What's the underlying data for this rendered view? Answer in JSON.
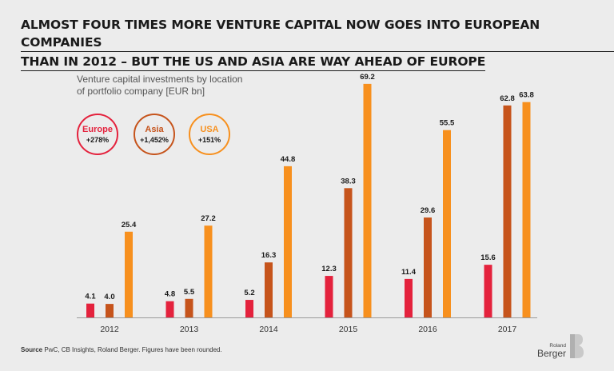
{
  "header": {
    "title_line1": "ALMOST FOUR TIMES MORE VENTURE CAPITAL NOW GOES INTO EUROPEAN COMPANIES",
    "title_line2": "THAN IN 2012 – BUT THE US AND ASIA ARE WAY AHEAD OF EUROPE"
  },
  "subtitle_line1": "Venture capital investments by location",
  "subtitle_line2": "of portfolio company [EUR bn]",
  "legend": [
    {
      "name": "Europe",
      "change": "+278%",
      "color": "#e4223d"
    },
    {
      "name": "Asia",
      "change": "+1,452%",
      "color": "#c6541c"
    },
    {
      "name": "USA",
      "change": "+151%",
      "color": "#f7901e"
    }
  ],
  "chart_data": {
    "type": "bar",
    "categories": [
      "2012",
      "2013",
      "2014",
      "2015",
      "2016",
      "2017"
    ],
    "series": [
      {
        "name": "Europe",
        "color": "#e4223d",
        "values": [
          4.1,
          4.8,
          5.2,
          12.3,
          11.4,
          15.6
        ]
      },
      {
        "name": "Asia",
        "color": "#c6541c",
        "values": [
          4.0,
          5.5,
          16.3,
          38.3,
          29.6,
          62.8
        ]
      },
      {
        "name": "USA",
        "color": "#f7901e",
        "values": [
          25.4,
          27.2,
          44.8,
          69.2,
          55.5,
          63.8
        ]
      }
    ],
    "ylim": [
      0,
      70
    ],
    "grid": false,
    "legend": "top-left"
  },
  "source": {
    "label": "Source",
    "text": "PwC, CB Insights, Roland Berger. Figures have been rounded."
  },
  "logo": {
    "line1": "Roland",
    "line2": "Berger"
  }
}
